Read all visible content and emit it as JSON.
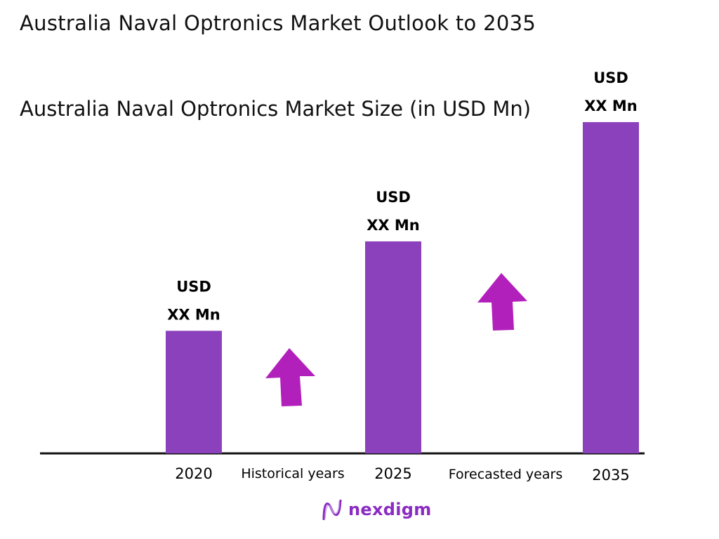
{
  "chart_data": {
    "type": "bar",
    "title": "Australia Naval Optronics Market Outlook to 2035",
    "subtitle": " Australia Naval Optronics Market Size (in USD Mn)",
    "categories": [
      "2020",
      "2025",
      "2035"
    ],
    "values": [
      0.37,
      0.64,
      1.0
    ],
    "data_labels": [
      [
        "USD",
        "XX Mn"
      ],
      [
        "USD",
        "XX Mn"
      ],
      [
        "USD",
        "XX Mn"
      ]
    ],
    "period_labels": [
      "Historical years",
      "Forecasted years"
    ],
    "ylim": [
      0,
      1
    ],
    "grid": false,
    "legend": "none",
    "bar_color": "#8B41BC",
    "arrow_color": "#B220BC"
  },
  "brand": {
    "name": "nexdigm",
    "color": "#8A2BC2"
  }
}
